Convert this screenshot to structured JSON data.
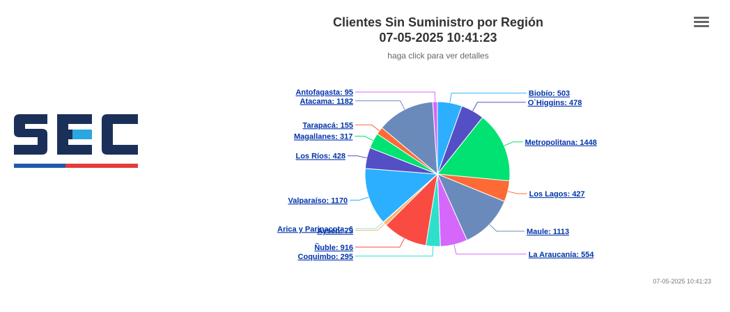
{
  "logo": {
    "text": "SEC",
    "colors": {
      "dark": "#1b3059",
      "accent": "#2aa7e0",
      "bar_blue": "#1e5aa8",
      "bar_red": "#e23c3c"
    }
  },
  "menu": {
    "icon": "hamburger-menu-icon"
  },
  "timestamp": "07-05-2025 10:41:23",
  "chart_data": {
    "type": "pie",
    "title": [
      "Clientes Sin Suministro por Región",
      "07-05-2025 10:41:23"
    ],
    "subtitle": "haga click para ver detalles",
    "label_format": "{name}: {value}",
    "slices": [
      {
        "name": "Biobío",
        "value": 503,
        "color": "#2caffe"
      },
      {
        "name": "O`Higgins",
        "value": 478,
        "color": "#544fc5"
      },
      {
        "name": "Metropolitana",
        "value": 1448,
        "color": "#00e272"
      },
      {
        "name": "Los Lagos",
        "value": 427,
        "color": "#fe6a35"
      },
      {
        "name": "Maule",
        "value": 1113,
        "color": "#6b8abc"
      },
      {
        "name": "La Araucanía",
        "value": 554,
        "color": "#d568fb"
      },
      {
        "name": "Coquimbo",
        "value": 295,
        "color": "#2ee0ca"
      },
      {
        "name": "Ñuble",
        "value": 916,
        "color": "#fa4b42"
      },
      {
        "name": "Aysén",
        "value": 79,
        "color": "#feb56a"
      },
      {
        "name": "Arica y Parinacota",
        "value": 6,
        "color": "#91e8e1"
      },
      {
        "name": "Valparaíso",
        "value": 1170,
        "color": "#2caffe"
      },
      {
        "name": "Los Ríos",
        "value": 428,
        "color": "#544fc5"
      },
      {
        "name": "Magallanes",
        "value": 317,
        "color": "#00e272"
      },
      {
        "name": "Tarapacá",
        "value": 155,
        "color": "#fe6a35"
      },
      {
        "name": "Atacama",
        "value": 1182,
        "color": "#6b8abc"
      },
      {
        "name": "Antofagasta",
        "value": 95,
        "color": "#d568fb"
      }
    ]
  }
}
